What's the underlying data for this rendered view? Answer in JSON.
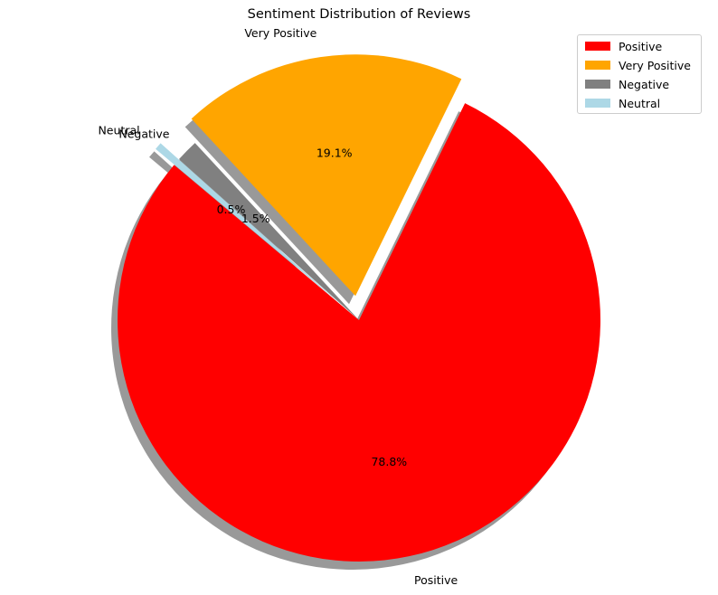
{
  "chart_data": {
    "type": "pie",
    "title": "Sentiment Distribution of Reviews",
    "slices": [
      {
        "label": "Positive",
        "percent": 78.8,
        "pct_label": "78.8%",
        "color": "#ff0000",
        "exploded": false
      },
      {
        "label": "Very Positive",
        "percent": 19.1,
        "pct_label": "19.1%",
        "color": "#ffa500",
        "exploded": true
      },
      {
        "label": "Negative",
        "percent": 1.5,
        "pct_label": "1.5%",
        "color": "#808080",
        "exploded": false
      },
      {
        "label": "Neutral",
        "percent": 0.5,
        "pct_label": "0.5%",
        "color": "#add8e6",
        "exploded": true
      }
    ],
    "start_angle_deg": 140,
    "shadow": true,
    "legend_position": "top-right",
    "legend": [
      "Positive",
      "Very Positive",
      "Negative",
      "Neutral"
    ]
  }
}
